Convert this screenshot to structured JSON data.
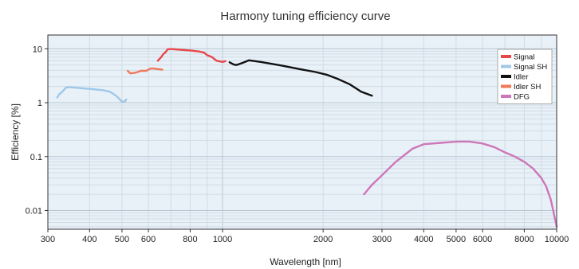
{
  "chart_data": {
    "type": "line",
    "title": "Harmony tuning efficiency curve",
    "xlabel": "Wavelength [nm]",
    "ylabel": "Efficiency [%]",
    "x_scale": "log",
    "y_scale": "log",
    "xlim": [
      300,
      10000
    ],
    "ylim": [
      0.0045,
      18
    ],
    "x_ticks": [
      300,
      400,
      500,
      600,
      800,
      1000,
      2000,
      3000,
      4000,
      5000,
      6000,
      8000,
      10000
    ],
    "x_tick_labels": [
      "300",
      "400",
      "500",
      "600",
      "800",
      "1000",
      "2000",
      "3000",
      "4000",
      "5000",
      "6000",
      "8000",
      "10000"
    ],
    "y_ticks": [
      0.01,
      0.1,
      1,
      10
    ],
    "y_tick_labels": [
      "0.01",
      "0.1",
      "1",
      "10"
    ],
    "grid": true,
    "legend_position": "top-right",
    "series": [
      {
        "name": "Signal",
        "color": "#e8474a",
        "x": [
          640,
          655,
          665,
          675,
          685,
          700,
          750,
          800,
          850,
          880,
          900,
          930,
          960,
          1000,
          1020
        ],
        "y": [
          6.0,
          7.0,
          8.0,
          8.6,
          9.8,
          9.9,
          9.6,
          9.3,
          8.9,
          8.5,
          7.6,
          7.0,
          6.0,
          5.7,
          5.9
        ]
      },
      {
        "name": "Signal SH",
        "color": "#9fc8e8",
        "x": [
          320,
          325,
          330,
          340,
          350,
          360,
          400,
          440,
          460,
          480,
          500,
          510,
          515
        ],
        "y": [
          1.25,
          1.45,
          1.55,
          1.9,
          1.95,
          1.9,
          1.8,
          1.7,
          1.6,
          1.35,
          1.05,
          1.05,
          1.15
        ]
      },
      {
        "name": "Idler",
        "color": "#111111",
        "x": [
          1050,
          1080,
          1100,
          1150,
          1200,
          1250,
          1300,
          1500,
          1700,
          1900,
          2050,
          2200,
          2400,
          2600,
          2800
        ],
        "y": [
          5.6,
          5.1,
          5.0,
          5.5,
          6.1,
          5.9,
          5.7,
          4.9,
          4.2,
          3.7,
          3.3,
          2.8,
          2.2,
          1.6,
          1.35
        ]
      },
      {
        "name": "Idler SH",
        "color": "#ee7a5a",
        "x": [
          520,
          530,
          550,
          570,
          590,
          610,
          620,
          640,
          660
        ],
        "y": [
          3.9,
          3.5,
          3.6,
          3.9,
          3.9,
          4.3,
          4.3,
          4.2,
          4.1
        ]
      },
      {
        "name": "DFG",
        "color": "#cc77b8",
        "x": [
          2650,
          2800,
          3000,
          3300,
          3700,
          4000,
          4500,
          5000,
          5500,
          6000,
          6500,
          7000,
          7500,
          8000,
          8500,
          9000,
          9300,
          9600,
          9800,
          10000
        ],
        "y": [
          0.02,
          0.03,
          0.045,
          0.08,
          0.14,
          0.17,
          0.18,
          0.19,
          0.19,
          0.175,
          0.15,
          0.12,
          0.1,
          0.08,
          0.06,
          0.04,
          0.028,
          0.016,
          0.009,
          0.005
        ]
      }
    ]
  }
}
